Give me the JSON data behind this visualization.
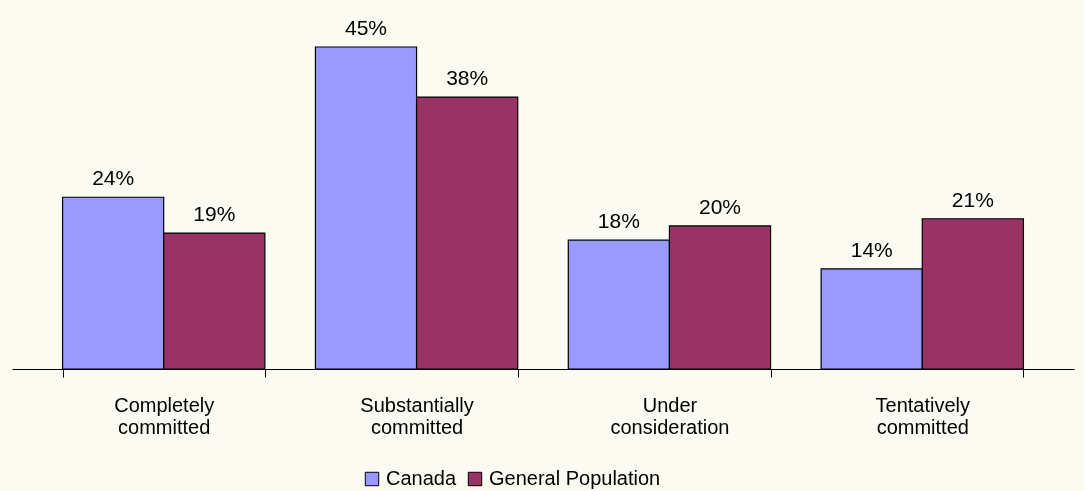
{
  "chart_data": {
    "type": "bar",
    "categories": [
      "Completely committed",
      "Substantially committed",
      "Under consideration",
      "Tentatively committed"
    ],
    "series": [
      {
        "name": "Canada",
        "color": "#9999ff",
        "values": [
          24,
          45,
          18,
          14
        ],
        "value_labels": [
          "24%",
          "45%",
          "18%",
          "14%"
        ]
      },
      {
        "name": "General Population",
        "color": "#993366",
        "values": [
          19,
          38,
          20,
          21
        ],
        "value_labels": [
          "19%",
          "38%",
          "20%",
          "21%"
        ]
      }
    ],
    "tick_labels": "x",
    "grid": false,
    "legend": "bottom"
  }
}
